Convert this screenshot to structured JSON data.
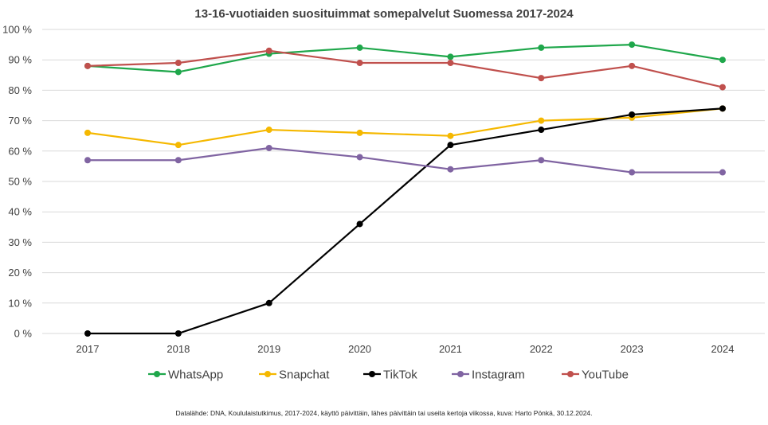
{
  "chart_data": {
    "type": "line",
    "title": "13-16-vuotiaiden suosituimmat somepalvelut Suomessa 2017-2024",
    "xlabel": "",
    "ylabel": "",
    "x": [
      "2017",
      "2018",
      "2019",
      "2020",
      "2021",
      "2022",
      "2023",
      "2024"
    ],
    "ylim": [
      0,
      100
    ],
    "yticks": [
      "0 %",
      "10 %",
      "20 %",
      "30 %",
      "40 %",
      "50 %",
      "60 %",
      "70 %",
      "80 %",
      "90 %",
      "100 %"
    ],
    "grid": true,
    "legend_position": "bottom",
    "series": [
      {
        "name": "WhatsApp",
        "color": "#1fa74b",
        "values": [
          88,
          86,
          92,
          94,
          91,
          94,
          95,
          90
        ]
      },
      {
        "name": "Snapchat",
        "color": "#f5b800",
        "values": [
          66,
          62,
          67,
          66,
          65,
          70,
          71,
          74
        ]
      },
      {
        "name": "TikTok",
        "color": "#000000",
        "values": [
          0,
          0,
          10,
          36,
          62,
          67,
          72,
          74
        ]
      },
      {
        "name": "Instagram",
        "color": "#8064a2",
        "values": [
          57,
          57,
          61,
          58,
          54,
          57,
          53,
          53
        ]
      },
      {
        "name": "YouTube",
        "color": "#c0504d",
        "values": [
          88,
          89,
          93,
          89,
          89,
          84,
          88,
          81
        ]
      }
    ],
    "source": "Datalähde: DNA, Koululaistutkimus, 2017-2024, käyttö päivittäin, lähes päivittäin tai useita kertoja viikossa, kuva: Harto Pönkä, 30.12.2024."
  }
}
